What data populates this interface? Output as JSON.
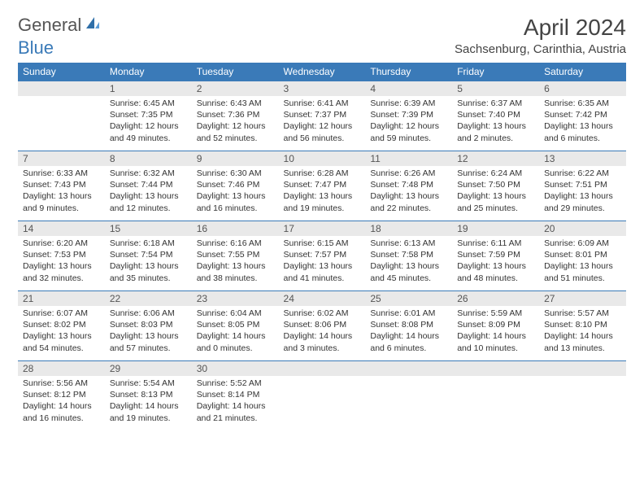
{
  "logo": {
    "text1": "General",
    "text2": "Blue"
  },
  "title": "April 2024",
  "location": "Sachsenburg, Carinthia, Austria",
  "colors": {
    "header_bg": "#3a7ab8",
    "header_fg": "#ffffff",
    "daynum_bg": "#e9e9e9",
    "border": "#3a7ab8",
    "text": "#333333"
  },
  "weekdays": [
    "Sunday",
    "Monday",
    "Tuesday",
    "Wednesday",
    "Thursday",
    "Friday",
    "Saturday"
  ],
  "weeks": [
    [
      {
        "n": "",
        "sr": "",
        "ss": "",
        "dl1": "",
        "dl2": ""
      },
      {
        "n": "1",
        "sr": "Sunrise: 6:45 AM",
        "ss": "Sunset: 7:35 PM",
        "dl1": "Daylight: 12 hours",
        "dl2": "and 49 minutes."
      },
      {
        "n": "2",
        "sr": "Sunrise: 6:43 AM",
        "ss": "Sunset: 7:36 PM",
        "dl1": "Daylight: 12 hours",
        "dl2": "and 52 minutes."
      },
      {
        "n": "3",
        "sr": "Sunrise: 6:41 AM",
        "ss": "Sunset: 7:37 PM",
        "dl1": "Daylight: 12 hours",
        "dl2": "and 56 minutes."
      },
      {
        "n": "4",
        "sr": "Sunrise: 6:39 AM",
        "ss": "Sunset: 7:39 PM",
        "dl1": "Daylight: 12 hours",
        "dl2": "and 59 minutes."
      },
      {
        "n": "5",
        "sr": "Sunrise: 6:37 AM",
        "ss": "Sunset: 7:40 PM",
        "dl1": "Daylight: 13 hours",
        "dl2": "and 2 minutes."
      },
      {
        "n": "6",
        "sr": "Sunrise: 6:35 AM",
        "ss": "Sunset: 7:42 PM",
        "dl1": "Daylight: 13 hours",
        "dl2": "and 6 minutes."
      }
    ],
    [
      {
        "n": "7",
        "sr": "Sunrise: 6:33 AM",
        "ss": "Sunset: 7:43 PM",
        "dl1": "Daylight: 13 hours",
        "dl2": "and 9 minutes."
      },
      {
        "n": "8",
        "sr": "Sunrise: 6:32 AM",
        "ss": "Sunset: 7:44 PM",
        "dl1": "Daylight: 13 hours",
        "dl2": "and 12 minutes."
      },
      {
        "n": "9",
        "sr": "Sunrise: 6:30 AM",
        "ss": "Sunset: 7:46 PM",
        "dl1": "Daylight: 13 hours",
        "dl2": "and 16 minutes."
      },
      {
        "n": "10",
        "sr": "Sunrise: 6:28 AM",
        "ss": "Sunset: 7:47 PM",
        "dl1": "Daylight: 13 hours",
        "dl2": "and 19 minutes."
      },
      {
        "n": "11",
        "sr": "Sunrise: 6:26 AM",
        "ss": "Sunset: 7:48 PM",
        "dl1": "Daylight: 13 hours",
        "dl2": "and 22 minutes."
      },
      {
        "n": "12",
        "sr": "Sunrise: 6:24 AM",
        "ss": "Sunset: 7:50 PM",
        "dl1": "Daylight: 13 hours",
        "dl2": "and 25 minutes."
      },
      {
        "n": "13",
        "sr": "Sunrise: 6:22 AM",
        "ss": "Sunset: 7:51 PM",
        "dl1": "Daylight: 13 hours",
        "dl2": "and 29 minutes."
      }
    ],
    [
      {
        "n": "14",
        "sr": "Sunrise: 6:20 AM",
        "ss": "Sunset: 7:53 PM",
        "dl1": "Daylight: 13 hours",
        "dl2": "and 32 minutes."
      },
      {
        "n": "15",
        "sr": "Sunrise: 6:18 AM",
        "ss": "Sunset: 7:54 PM",
        "dl1": "Daylight: 13 hours",
        "dl2": "and 35 minutes."
      },
      {
        "n": "16",
        "sr": "Sunrise: 6:16 AM",
        "ss": "Sunset: 7:55 PM",
        "dl1": "Daylight: 13 hours",
        "dl2": "and 38 minutes."
      },
      {
        "n": "17",
        "sr": "Sunrise: 6:15 AM",
        "ss": "Sunset: 7:57 PM",
        "dl1": "Daylight: 13 hours",
        "dl2": "and 41 minutes."
      },
      {
        "n": "18",
        "sr": "Sunrise: 6:13 AM",
        "ss": "Sunset: 7:58 PM",
        "dl1": "Daylight: 13 hours",
        "dl2": "and 45 minutes."
      },
      {
        "n": "19",
        "sr": "Sunrise: 6:11 AM",
        "ss": "Sunset: 7:59 PM",
        "dl1": "Daylight: 13 hours",
        "dl2": "and 48 minutes."
      },
      {
        "n": "20",
        "sr": "Sunrise: 6:09 AM",
        "ss": "Sunset: 8:01 PM",
        "dl1": "Daylight: 13 hours",
        "dl2": "and 51 minutes."
      }
    ],
    [
      {
        "n": "21",
        "sr": "Sunrise: 6:07 AM",
        "ss": "Sunset: 8:02 PM",
        "dl1": "Daylight: 13 hours",
        "dl2": "and 54 minutes."
      },
      {
        "n": "22",
        "sr": "Sunrise: 6:06 AM",
        "ss": "Sunset: 8:03 PM",
        "dl1": "Daylight: 13 hours",
        "dl2": "and 57 minutes."
      },
      {
        "n": "23",
        "sr": "Sunrise: 6:04 AM",
        "ss": "Sunset: 8:05 PM",
        "dl1": "Daylight: 14 hours",
        "dl2": "and 0 minutes."
      },
      {
        "n": "24",
        "sr": "Sunrise: 6:02 AM",
        "ss": "Sunset: 8:06 PM",
        "dl1": "Daylight: 14 hours",
        "dl2": "and 3 minutes."
      },
      {
        "n": "25",
        "sr": "Sunrise: 6:01 AM",
        "ss": "Sunset: 8:08 PM",
        "dl1": "Daylight: 14 hours",
        "dl2": "and 6 minutes."
      },
      {
        "n": "26",
        "sr": "Sunrise: 5:59 AM",
        "ss": "Sunset: 8:09 PM",
        "dl1": "Daylight: 14 hours",
        "dl2": "and 10 minutes."
      },
      {
        "n": "27",
        "sr": "Sunrise: 5:57 AM",
        "ss": "Sunset: 8:10 PM",
        "dl1": "Daylight: 14 hours",
        "dl2": "and 13 minutes."
      }
    ],
    [
      {
        "n": "28",
        "sr": "Sunrise: 5:56 AM",
        "ss": "Sunset: 8:12 PM",
        "dl1": "Daylight: 14 hours",
        "dl2": "and 16 minutes."
      },
      {
        "n": "29",
        "sr": "Sunrise: 5:54 AM",
        "ss": "Sunset: 8:13 PM",
        "dl1": "Daylight: 14 hours",
        "dl2": "and 19 minutes."
      },
      {
        "n": "30",
        "sr": "Sunrise: 5:52 AM",
        "ss": "Sunset: 8:14 PM",
        "dl1": "Daylight: 14 hours",
        "dl2": "and 21 minutes."
      },
      {
        "n": "",
        "sr": "",
        "ss": "",
        "dl1": "",
        "dl2": ""
      },
      {
        "n": "",
        "sr": "",
        "ss": "",
        "dl1": "",
        "dl2": ""
      },
      {
        "n": "",
        "sr": "",
        "ss": "",
        "dl1": "",
        "dl2": ""
      },
      {
        "n": "",
        "sr": "",
        "ss": "",
        "dl1": "",
        "dl2": ""
      }
    ]
  ]
}
